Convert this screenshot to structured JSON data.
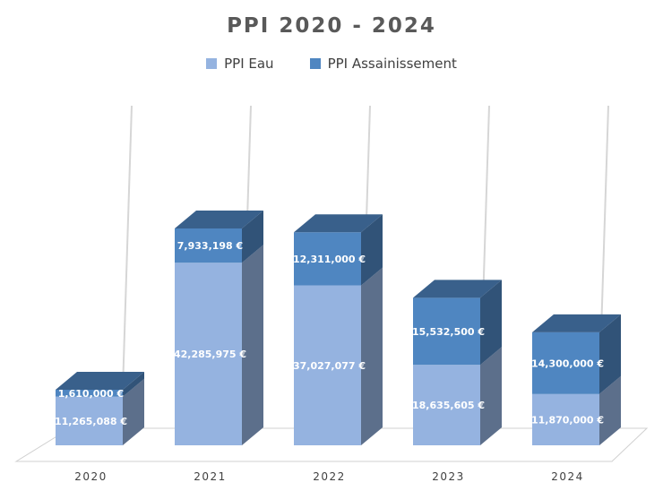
{
  "chart_data": {
    "type": "bar",
    "stacked": true,
    "title": "PPI 2020 - 2024",
    "legend_position": "top",
    "categories": [
      "2020",
      "2021",
      "2022",
      "2023",
      "2024"
    ],
    "series": [
      {
        "name": "PPI Eau",
        "color": "#95b3e0",
        "values": [
          11265088,
          42285975,
          37027077,
          18635605,
          11870000
        ],
        "labels": [
          "11,265,088 €",
          "42,285,975 €",
          "37,027,077 €",
          "18,635,605 €",
          "11,870,000 €"
        ]
      },
      {
        "name": "PPI Assainissement",
        "color": "#4f86c1",
        "values": [
          1610000,
          7933198,
          12311000,
          15532500,
          14300000
        ],
        "labels": [
          "1,610,000 €",
          "7,933,198 €",
          "12,311,000 €",
          "15,532,500 €",
          "14,300,000 €"
        ]
      }
    ],
    "ylim": [
      0,
      60000000
    ],
    "grid": true
  }
}
